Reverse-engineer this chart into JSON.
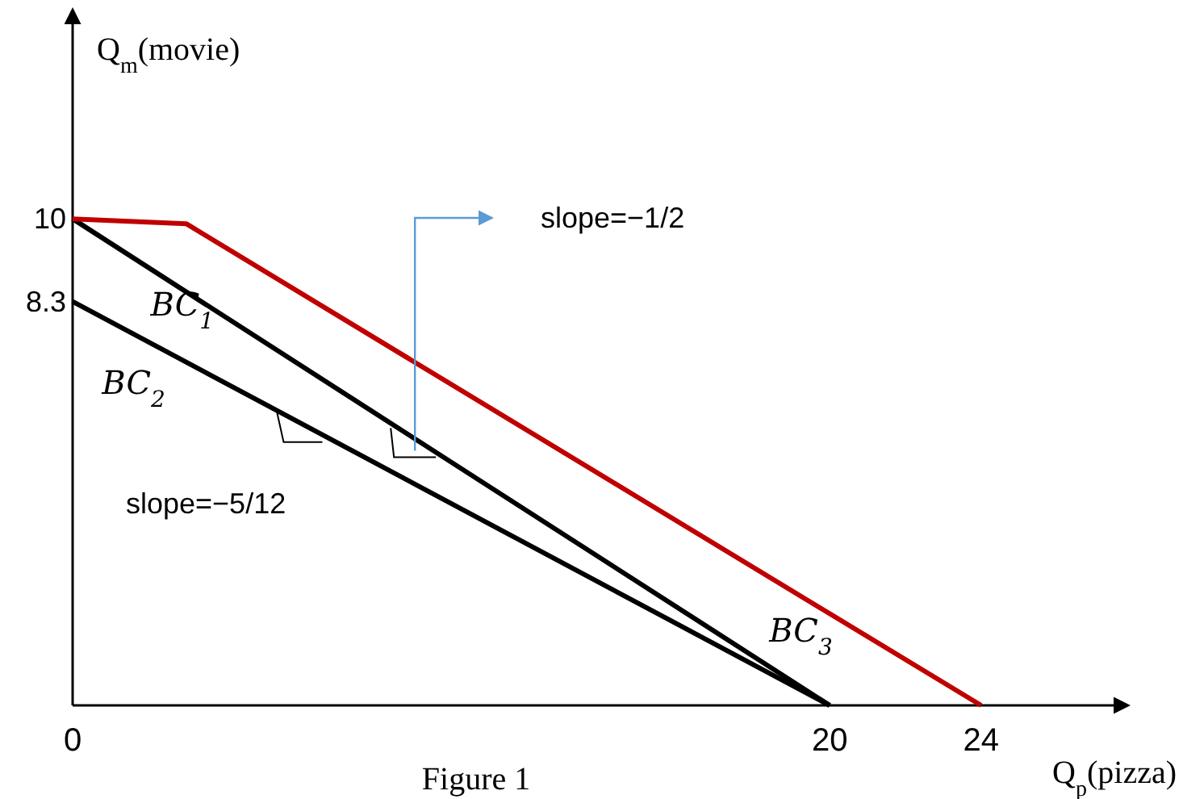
{
  "chart_data": {
    "type": "line",
    "xlabel": "Q$_{p}$(pizza)",
    "ylabel": "Q$_{m}$(movie)",
    "xlim": [
      0,
      27.5
    ],
    "ylim": [
      0,
      14
    ],
    "xticks": [
      0,
      20,
      24
    ],
    "yticks": [
      8.3,
      10
    ],
    "grid": false,
    "line_style": "solid",
    "series": [
      {
        "name": "BC$_{1}$",
        "color": "#000000",
        "x": [
          0,
          20
        ],
        "values": [
          10,
          0
        ]
      },
      {
        "name": "BC$_{2}$",
        "color": "#000000",
        "x": [
          0,
          20
        ],
        "values": [
          8.3,
          0
        ]
      },
      {
        "name": "BC$_{3}$",
        "color": "#c00000",
        "x": [
          0,
          3,
          24
        ],
        "values": [
          10,
          9.9,
          0
        ]
      }
    ],
    "annotations": [
      "slope=−5/12",
      "slope=−1/2",
      "Figure 1"
    ]
  }
}
